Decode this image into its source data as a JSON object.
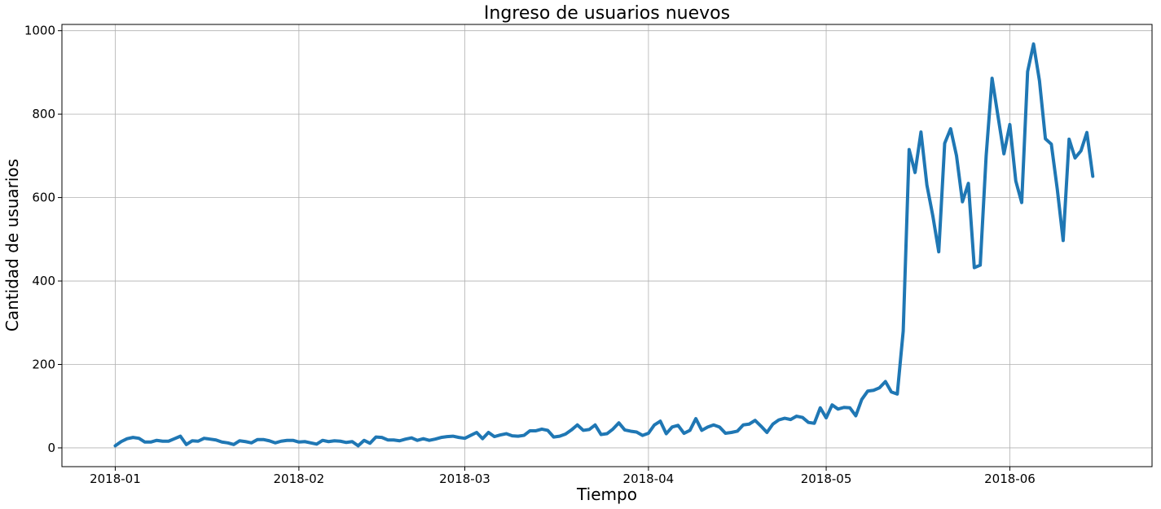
{
  "chart_data": {
    "type": "line",
    "title": "Ingreso de usuarios nuevos",
    "xlabel": "Tiempo",
    "ylabel": "Cantidad de usuarios",
    "x_start_date": "2018-01-01",
    "xlim": [
      "2017-12-23",
      "2018-06-25"
    ],
    "ylim": [
      -45,
      1015
    ],
    "x_ticks": [
      {
        "date": "2018-01-01",
        "label": "2018-01"
      },
      {
        "date": "2018-02-01",
        "label": "2018-02"
      },
      {
        "date": "2018-03-01",
        "label": "2018-03"
      },
      {
        "date": "2018-04-01",
        "label": "2018-04"
      },
      {
        "date": "2018-05-01",
        "label": "2018-05"
      },
      {
        "date": "2018-06-01",
        "label": "2018-06"
      }
    ],
    "y_ticks": [
      0,
      200,
      400,
      600,
      800,
      1000
    ],
    "grid": true,
    "series": [
      {
        "name": "",
        "color": "#1f77b4",
        "values": [
          5,
          15,
          22,
          25,
          23,
          14,
          14,
          18,
          16,
          16,
          22,
          28,
          8,
          17,
          16,
          23,
          21,
          19,
          14,
          12,
          8,
          17,
          15,
          12,
          20,
          20,
          17,
          12,
          16,
          18,
          18,
          14,
          15,
          12,
          9,
          18,
          15,
          17,
          16,
          13,
          15,
          5,
          18,
          11,
          26,
          25,
          19,
          19,
          17,
          21,
          24,
          18,
          22,
          18,
          21,
          25,
          27,
          28,
          25,
          23,
          30,
          37,
          22,
          37,
          27,
          31,
          34,
          29,
          28,
          30,
          41,
          41,
          45,
          42,
          26,
          28,
          33,
          43,
          55,
          42,
          44,
          55,
          32,
          34,
          45,
          60,
          43,
          40,
          38,
          30,
          35,
          55,
          64,
          34,
          50,
          54,
          35,
          42,
          70,
          42,
          50,
          55,
          50,
          35,
          37,
          40,
          55,
          57,
          66,
          52,
          37,
          57,
          67,
          71,
          68,
          76,
          73,
          61,
          59,
          96,
          72,
          103,
          93,
          97,
          96,
          77,
          116,
          136,
          138,
          144,
          159,
          134,
          129,
          280,
          715,
          660,
          757,
          630,
          556,
          470,
          730,
          765,
          700,
          590,
          634,
          432,
          438,
          700,
          886,
          795,
          705,
          775,
          640,
          588,
          902,
          968,
          880,
          741,
          728,
          621,
          497,
          740,
          695,
          712,
          756,
          651
        ]
      }
    ]
  }
}
